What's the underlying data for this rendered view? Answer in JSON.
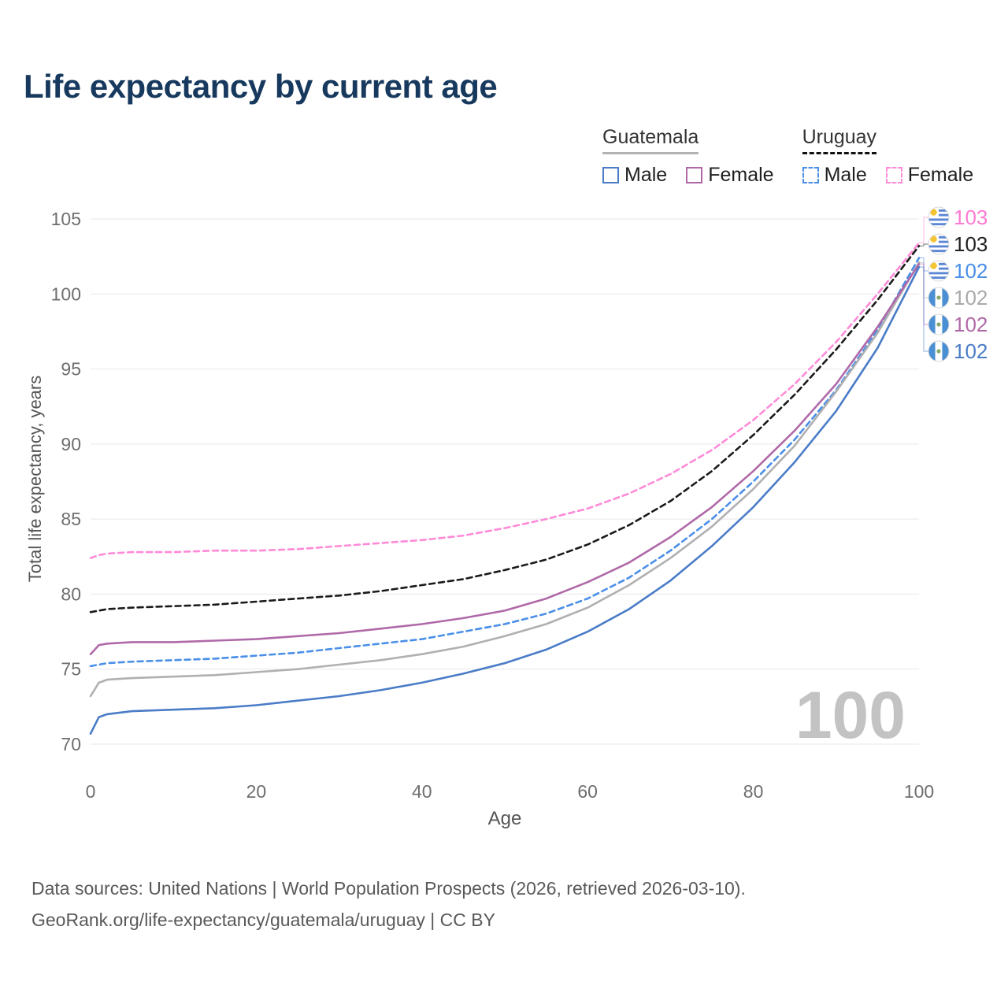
{
  "title": "Life expectancy by current age",
  "watermark": "100",
  "legend": {
    "groups": [
      {
        "id": "guatemala",
        "label": "Guatemala",
        "underline_style": "solid",
        "underline_color": "#b3b3b3",
        "items": [
          {
            "id": "male",
            "label": "Male",
            "color": "#4a7cc7",
            "dash": false
          },
          {
            "id": "female",
            "label": "Female",
            "color": "#b069a8",
            "dash": false
          }
        ]
      },
      {
        "id": "uruguay",
        "label": "Uruguay",
        "underline_style": "dashed",
        "underline_color": "#111111",
        "items": [
          {
            "id": "male",
            "label": "Male",
            "color": "#4a8fe8",
            "dash": true
          },
          {
            "id": "female",
            "label": "Female",
            "color": "#ff8ad8",
            "dash": true
          }
        ]
      }
    ]
  },
  "footer": {
    "line1": "Data sources: United Nations | World Population Prospects (2026, retrieved 2026-03-10).",
    "line2": "GeoRank.org/life-expectancy/guatemala/uruguay | CC BY"
  },
  "chart_data": {
    "type": "line",
    "title": "Life expectancy by current age",
    "xlabel": "Age",
    "ylabel": "Total life expectancy, years",
    "xlim": [
      0,
      100
    ],
    "ylim": [
      70,
      105
    ],
    "x_ticks": [
      0,
      20,
      40,
      60,
      80,
      100
    ],
    "y_ticks": [
      70,
      75,
      80,
      85,
      90,
      95,
      100,
      105
    ],
    "grid": "horizontal",
    "legend_position": "top-right",
    "x": [
      0,
      1,
      2,
      5,
      10,
      15,
      20,
      25,
      30,
      35,
      40,
      45,
      50,
      55,
      60,
      65,
      70,
      75,
      80,
      85,
      90,
      95,
      100
    ],
    "series": [
      {
        "name": "Uruguay Female",
        "country": "Uruguay",
        "sex": "Female",
        "color": "#ff8ad8",
        "dash": "7 5",
        "flag": "uruguay",
        "end_label": "103",
        "label_color": "#ff7ad2",
        "values": [
          82.4,
          82.6,
          82.7,
          82.8,
          82.8,
          82.9,
          82.9,
          83.0,
          83.2,
          83.4,
          83.6,
          83.9,
          84.4,
          85.0,
          85.7,
          86.7,
          88.0,
          89.6,
          91.6,
          94.0,
          96.8,
          100.0,
          103.4
        ]
      },
      {
        "name": "Uruguay Total",
        "country": "Uruguay",
        "sex": "Total",
        "color": "#1a1a1a",
        "dash": "7 5",
        "flag": "uruguay",
        "end_label": "103",
        "label_color": "#222222",
        "values": [
          78.8,
          78.9,
          79.0,
          79.1,
          79.2,
          79.3,
          79.5,
          79.7,
          79.9,
          80.2,
          80.6,
          81.0,
          81.6,
          82.3,
          83.3,
          84.6,
          86.2,
          88.2,
          90.6,
          93.3,
          96.3,
          99.6,
          103.2
        ]
      },
      {
        "name": "Uruguay Male",
        "country": "Uruguay",
        "sex": "Male",
        "color": "#4a8fe8",
        "dash": "7 5",
        "flag": "uruguay",
        "end_label": "102",
        "label_color": "#4a8fe8",
        "values": [
          75.2,
          75.3,
          75.4,
          75.5,
          75.6,
          75.7,
          75.9,
          76.1,
          76.4,
          76.7,
          77.0,
          77.5,
          78.0,
          78.7,
          79.7,
          81.1,
          82.9,
          85.0,
          87.5,
          90.3,
          93.6,
          97.6,
          102.4
        ]
      },
      {
        "name": "Guatemala Total",
        "country": "Guatemala",
        "sex": "Total",
        "color": "#b0b0b0",
        "dash": null,
        "flag": "guatemala",
        "end_label": "102",
        "label_color": "#aaaaaa",
        "values": [
          73.2,
          74.1,
          74.3,
          74.4,
          74.5,
          74.6,
          74.8,
          75.0,
          75.3,
          75.6,
          76.0,
          76.5,
          77.2,
          78.0,
          79.1,
          80.6,
          82.4,
          84.5,
          87.0,
          89.9,
          93.5,
          97.4,
          102.1
        ]
      },
      {
        "name": "Guatemala Female",
        "country": "Guatemala",
        "sex": "Female",
        "color": "#b069a8",
        "dash": null,
        "flag": "guatemala",
        "end_label": "102",
        "label_color": "#b069a8",
        "values": [
          76.0,
          76.6,
          76.7,
          76.8,
          76.8,
          76.9,
          77.0,
          77.2,
          77.4,
          77.7,
          78.0,
          78.4,
          78.9,
          79.7,
          80.8,
          82.1,
          83.8,
          85.8,
          88.2,
          90.9,
          94.0,
          97.8,
          102.0
        ]
      },
      {
        "name": "Guatemala Male",
        "country": "Guatemala",
        "sex": "Male",
        "color": "#4a7cc7",
        "dash": null,
        "flag": "guatemala",
        "end_label": "102",
        "label_color": "#4a7cc7",
        "values": [
          70.7,
          71.8,
          72.0,
          72.2,
          72.3,
          72.4,
          72.6,
          72.9,
          73.2,
          73.6,
          74.1,
          74.7,
          75.4,
          76.3,
          77.5,
          79.0,
          80.9,
          83.2,
          85.8,
          88.8,
          92.2,
          96.4,
          101.8
        ]
      }
    ]
  }
}
